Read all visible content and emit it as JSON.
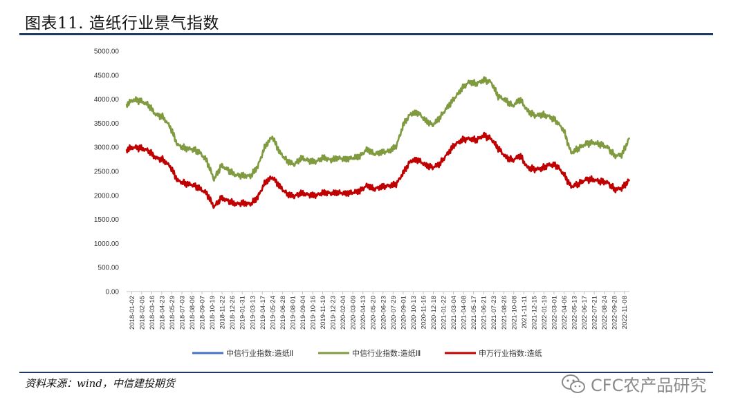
{
  "figure": {
    "title": "图表11.  造纸行业景气指数",
    "source": "资料来源：wind，中信建投期货",
    "watermark": "CFC农产品研究",
    "watermark_icon": "wechat-icon"
  },
  "chart_data": {
    "type": "line",
    "title": "",
    "xlabel": "",
    "ylabel": "",
    "ylim": [
      0,
      5000
    ],
    "y_ticks": [
      "0.00",
      "500.00",
      "1000.00",
      "1500.00",
      "2000.00",
      "2500.00",
      "3000.00",
      "3500.00",
      "4000.00",
      "4500.00",
      "5000.00"
    ],
    "x_tick_labels": [
      "2018-01-02",
      "2018-02-05",
      "2018-03-16",
      "2018-04-23",
      "2018-05-29",
      "2018-07-03",
      "2018-08-06",
      "2018-09-07",
      "2018-10-19",
      "2018-11-22",
      "2018-12-26",
      "2019-01-31",
      "2019-03-13",
      "2019-04-17",
      "2019-05-24",
      "2019-06-28",
      "2019-08-01",
      "2019-09-04",
      "2019-10-16",
      "2019-11-19",
      "2019-12-23",
      "2020-02-04",
      "2020-03-09",
      "2020-04-13",
      "2020-05-20",
      "2020-06-23",
      "2020-07-29",
      "2020-09-01",
      "2020-10-13",
      "2020-11-16",
      "2020-12-18",
      "2021-01-22",
      "2021-03-04",
      "2021-04-08",
      "2021-05-17",
      "2021-06-21",
      "2021-07-23",
      "2021-08-26",
      "2021-10-08",
      "2021-11-11",
      "2021-12-15",
      "2022-01-19",
      "2022-03-01",
      "2022-04-06",
      "2022-05-13",
      "2022-06-17",
      "2022-07-21",
      "2022-08-24",
      "2022-09-28",
      "2022-11-08"
    ],
    "legend_position": "bottom",
    "grid": false,
    "colors": {
      "series1": "#4472c4",
      "series2": "#7f9a3f",
      "series3": "#c00000"
    },
    "series": [
      {
        "name": "中信行业指数:造纸Ⅱ",
        "values": []
      },
      {
        "name": "中信行业指数:造纸Ⅲ",
        "values": [
          3900,
          3990,
          3960,
          3880,
          3680,
          3630,
          3420,
          3050,
          2980,
          2960,
          2900,
          2720,
          2330,
          2620,
          2520,
          2420,
          2410,
          2400,
          2600,
          3020,
          3220,
          2900,
          2720,
          2640,
          2780,
          2720,
          2700,
          2790,
          2730,
          2780,
          2750,
          2780,
          2810,
          2960,
          2860,
          2900,
          2920,
          3020,
          3480,
          3700,
          3720,
          3560,
          3460,
          3620,
          3830,
          4020,
          4220,
          4360,
          4320,
          4400,
          4360,
          4060,
          3980,
          3860,
          4000,
          3760,
          3660,
          3680,
          3640,
          3540,
          3350,
          2880,
          2980,
          3070,
          3100,
          3060,
          3000,
          2820,
          2850,
          3200
        ]
      },
      {
        "name": "申万行业指数:造纸",
        "values": [
          2960,
          3000,
          2980,
          2930,
          2780,
          2740,
          2600,
          2310,
          2250,
          2220,
          2150,
          2040,
          1760,
          1950,
          1880,
          1820,
          1840,
          1820,
          1960,
          2270,
          2380,
          2190,
          2030,
          1980,
          2050,
          2010,
          2000,
          2060,
          2040,
          2060,
          2040,
          2060,
          2090,
          2210,
          2130,
          2180,
          2200,
          2230,
          2480,
          2720,
          2740,
          2630,
          2580,
          2660,
          2860,
          3050,
          3150,
          3180,
          3150,
          3250,
          3180,
          2980,
          2800,
          2730,
          2830,
          2580,
          2540,
          2560,
          2640,
          2620,
          2440,
          2180,
          2240,
          2330,
          2330,
          2290,
          2270,
          2120,
          2150,
          2330
        ]
      }
    ]
  }
}
